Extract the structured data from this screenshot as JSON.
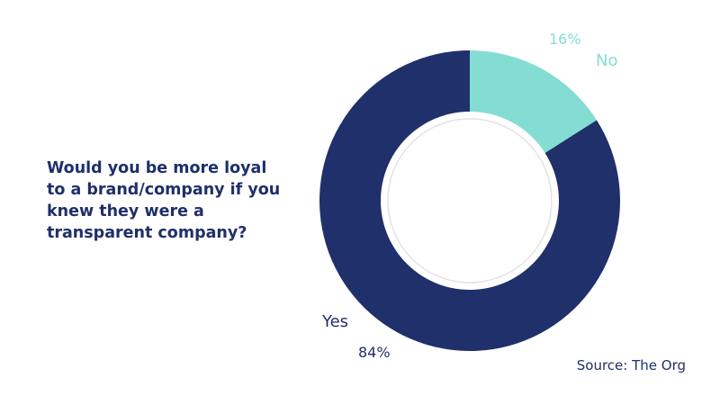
{
  "colors": {
    "yes": "#20306b",
    "no": "#84ddd3",
    "text_dark": "#1f2f6a",
    "inner_ring": "#e3e3e3"
  },
  "chart_data": {
    "type": "pie",
    "variant": "donut",
    "title": "Would you be more loyal to a brand/company if you knew they were a transparent company?",
    "slices": [
      {
        "label": "No",
        "value": 16,
        "value_label": "16%",
        "color": "#84ddd3"
      },
      {
        "label": "Yes",
        "value": 84,
        "value_label": "84%",
        "color": "#20306b"
      }
    ],
    "start": "12 o'clock, clockwise",
    "legend": "none (direct labels)"
  },
  "source": "Source: The Org"
}
